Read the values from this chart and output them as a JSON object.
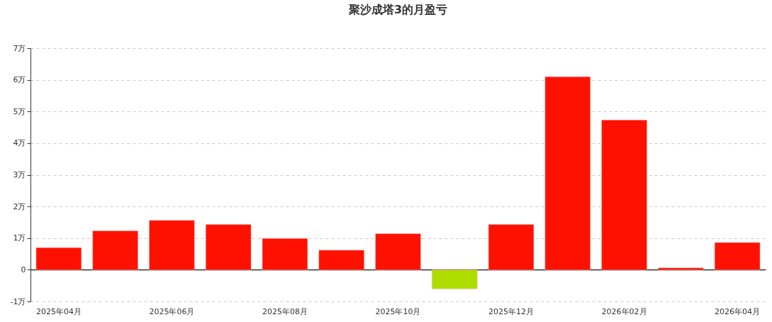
{
  "chart_data": {
    "type": "bar",
    "title": "聚沙成塔3的月盈亏",
    "categories": [
      "2025年04月",
      null,
      "2025年06月",
      null,
      "2025年08月",
      null,
      "2025年10月",
      null,
      "2025年12月",
      null,
      "2026年02月",
      null,
      "2026年04月"
    ],
    "values": [
      0.7,
      1.23,
      1.56,
      1.43,
      0.99,
      0.62,
      1.14,
      -0.6,
      1.43,
      6.1,
      4.73,
      0.06,
      0.86
    ],
    "colors": [
      "#ff1100",
      "#ff1100",
      "#ff1100",
      "#ff1100",
      "#ff1100",
      "#ff1100",
      "#ff1100",
      "#b0dd00",
      "#ff1100",
      "#ff1100",
      "#ff1100",
      "#ff1100",
      "#ff1100"
    ],
    "ylim": [
      -1,
      7
    ],
    "yticks": [
      {
        "value": -1,
        "label": "-1万"
      },
      0,
      {
        "value": 1,
        "label": "1万"
      },
      {
        "value": 2,
        "label": "2万"
      },
      {
        "value": 3,
        "label": "3万"
      },
      {
        "value": 4,
        "label": "4万"
      },
      {
        "value": 5,
        "label": "5万"
      },
      {
        "value": 6,
        "label": "6万"
      },
      {
        "value": 7,
        "label": "7万"
      }
    ],
    "grid": "y",
    "legend": false
  }
}
